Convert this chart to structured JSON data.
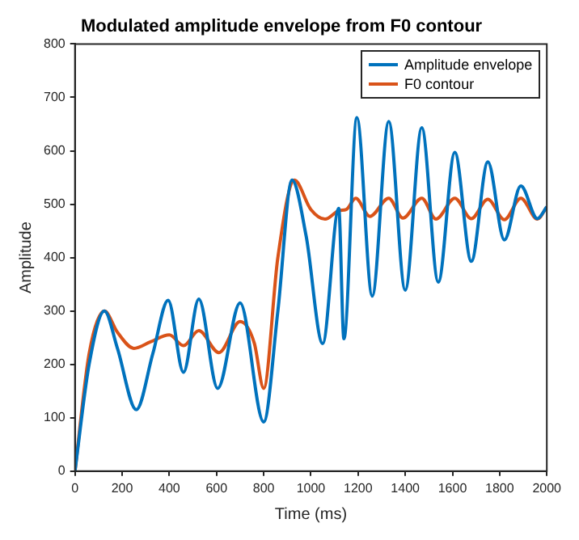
{
  "chart_data": {
    "type": "line",
    "title": "Modulated amplitude envelope from F0 contour",
    "xlabel": "Time (ms)",
    "ylabel": "Amplitude",
    "xlim": [
      0,
      2000
    ],
    "xticks": [
      0,
      200,
      400,
      600,
      800,
      1000,
      1200,
      1400,
      1600,
      1800,
      2000
    ],
    "ylim": [
      0,
      800
    ],
    "yticks": [
      0,
      100,
      200,
      300,
      400,
      500,
      600,
      700,
      800
    ],
    "grid": false,
    "legend": "top right",
    "line_style": "solid",
    "marker": "none",
    "series": [
      {
        "name": "Amplitude envelope",
        "color": "#0072bd",
        "x": [
          0,
          60,
          125,
          180,
          260,
          330,
          395,
          460,
          525,
          605,
          700,
          800,
          860,
          920,
          980,
          1050,
          1118,
          1140,
          1195,
          1260,
          1330,
          1400,
          1470,
          1540,
          1610,
          1680,
          1750,
          1820,
          1890,
          1960,
          2000
        ],
        "values": [
          0,
          200,
          300,
          230,
          115,
          220,
          320,
          185,
          322,
          155,
          315,
          92,
          300,
          545,
          440,
          239,
          492,
          248,
          662,
          328,
          655,
          339,
          643,
          354,
          597,
          393,
          579,
          433,
          534,
          473,
          495
        ]
      },
      {
        "name": "F0 contour",
        "color": "#d95319",
        "x": [
          0,
          60,
          125,
          180,
          250,
          320,
          400,
          460,
          525,
          610,
          700,
          760,
          800,
          860,
          930,
          1000,
          1060,
          1120,
          1150,
          1190,
          1250,
          1330,
          1390,
          1470,
          1530,
          1610,
          1680,
          1750,
          1820,
          1890,
          1960,
          2000
        ],
        "values": [
          0,
          220,
          300,
          260,
          230,
          242,
          255,
          235,
          263,
          222,
          280,
          240,
          155,
          400,
          545,
          490,
          472,
          488,
          490,
          511,
          477,
          511,
          474,
          511,
          472,
          511,
          473,
          509,
          471,
          511,
          472,
          495
        ]
      }
    ]
  }
}
